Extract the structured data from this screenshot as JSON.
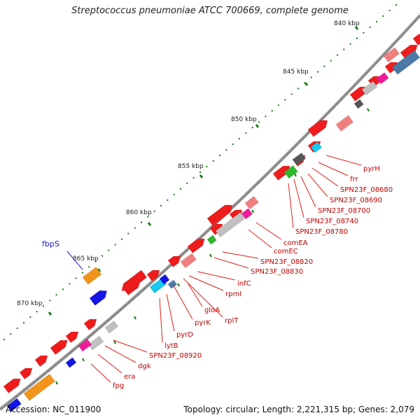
{
  "title": "Streptococcus pneumoniae ATCC 700669, complete genome",
  "accession_text": "Accession: NC_011900",
  "summary_text": "Topology: circular; Length: 2,221,315 bp; Genes: 2,079",
  "colors": {
    "backbone": "#999999",
    "tick": "#1a7a1a",
    "gene_label_line": "#e0201a",
    "gene_label_text": "#c00000",
    "highlight_label": "#1a1acc",
    "feature_red": "#ee1c1c",
    "feature_pink": "#f08080",
    "feature_gray": "#c0c0c0",
    "feature_orange": "#f2941b",
    "feature_blue": "#1414e6",
    "feature_cyan": "#18c8f0",
    "feature_green": "#2db82d",
    "feature_magenta": "#ee1c9a",
    "feature_steelblue": "#4b7aa6"
  },
  "ruler_labels": [
    "840 kbp",
    "845 kbp",
    "850 kbp",
    "855 kbp",
    "860 kbp",
    "865 kbp",
    "870 kbp"
  ],
  "highlight_gene": "fbpS",
  "gene_labels": [
    "pyrH",
    "frr",
    "SPN23F_08680",
    "SPN23F_08690",
    "SPN23F_08700",
    "SPN23F_08740",
    "SPN23F_08780",
    "comEA",
    "comEC",
    "SPN23F_08820",
    "SPN23F_08830",
    "infC",
    "rpmI",
    "rplT",
    "gloA",
    "pyrK",
    "pyrD",
    "lytB",
    "SPN23F_08920",
    "dgk",
    "era",
    "fpg"
  ]
}
